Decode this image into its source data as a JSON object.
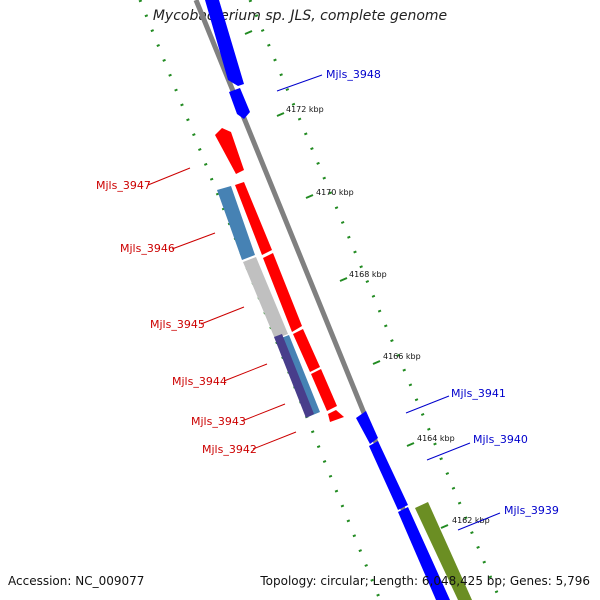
{
  "title": "Mycobacterium sp. JLS, complete genome",
  "footer": {
    "accession": "Accession: NC_009077",
    "summary": "Topology: circular; Length: 6,048,425 bp; Genes: 5,796"
  },
  "colors": {
    "backbone": "#808080",
    "forward_gene": "#0000ff",
    "reverse_gene": "#ff0000",
    "steelblue_gene": "#4682b4",
    "gray_gene": "#c0c0c0",
    "darkslate_gene": "#483d8b",
    "olive_gene": "#6b8e23",
    "ticks": "#228b22"
  },
  "ticks": [
    {
      "label": "4172 kbp"
    },
    {
      "label": "4170 kbp"
    },
    {
      "label": "4168 kbp"
    },
    {
      "label": "4166 kbp"
    },
    {
      "label": "4164 kbp"
    },
    {
      "label": "4162 kbp"
    }
  ],
  "gene_labels": [
    {
      "name": "Mjls_3948",
      "color": "#0000cc"
    },
    {
      "name": "Mjls_3947",
      "color": "#cc0000"
    },
    {
      "name": "Mjls_3946",
      "color": "#cc0000"
    },
    {
      "name": "Mjls_3945",
      "color": "#cc0000"
    },
    {
      "name": "Mjls_3944",
      "color": "#cc0000"
    },
    {
      "name": "Mjls_3943",
      "color": "#cc0000"
    },
    {
      "name": "Mjls_3942",
      "color": "#cc0000"
    },
    {
      "name": "Mjls_3941",
      "color": "#0000cc"
    },
    {
      "name": "Mjls_3940",
      "color": "#0000cc"
    },
    {
      "name": "Mjls_3939",
      "color": "#0000cc"
    }
  ]
}
